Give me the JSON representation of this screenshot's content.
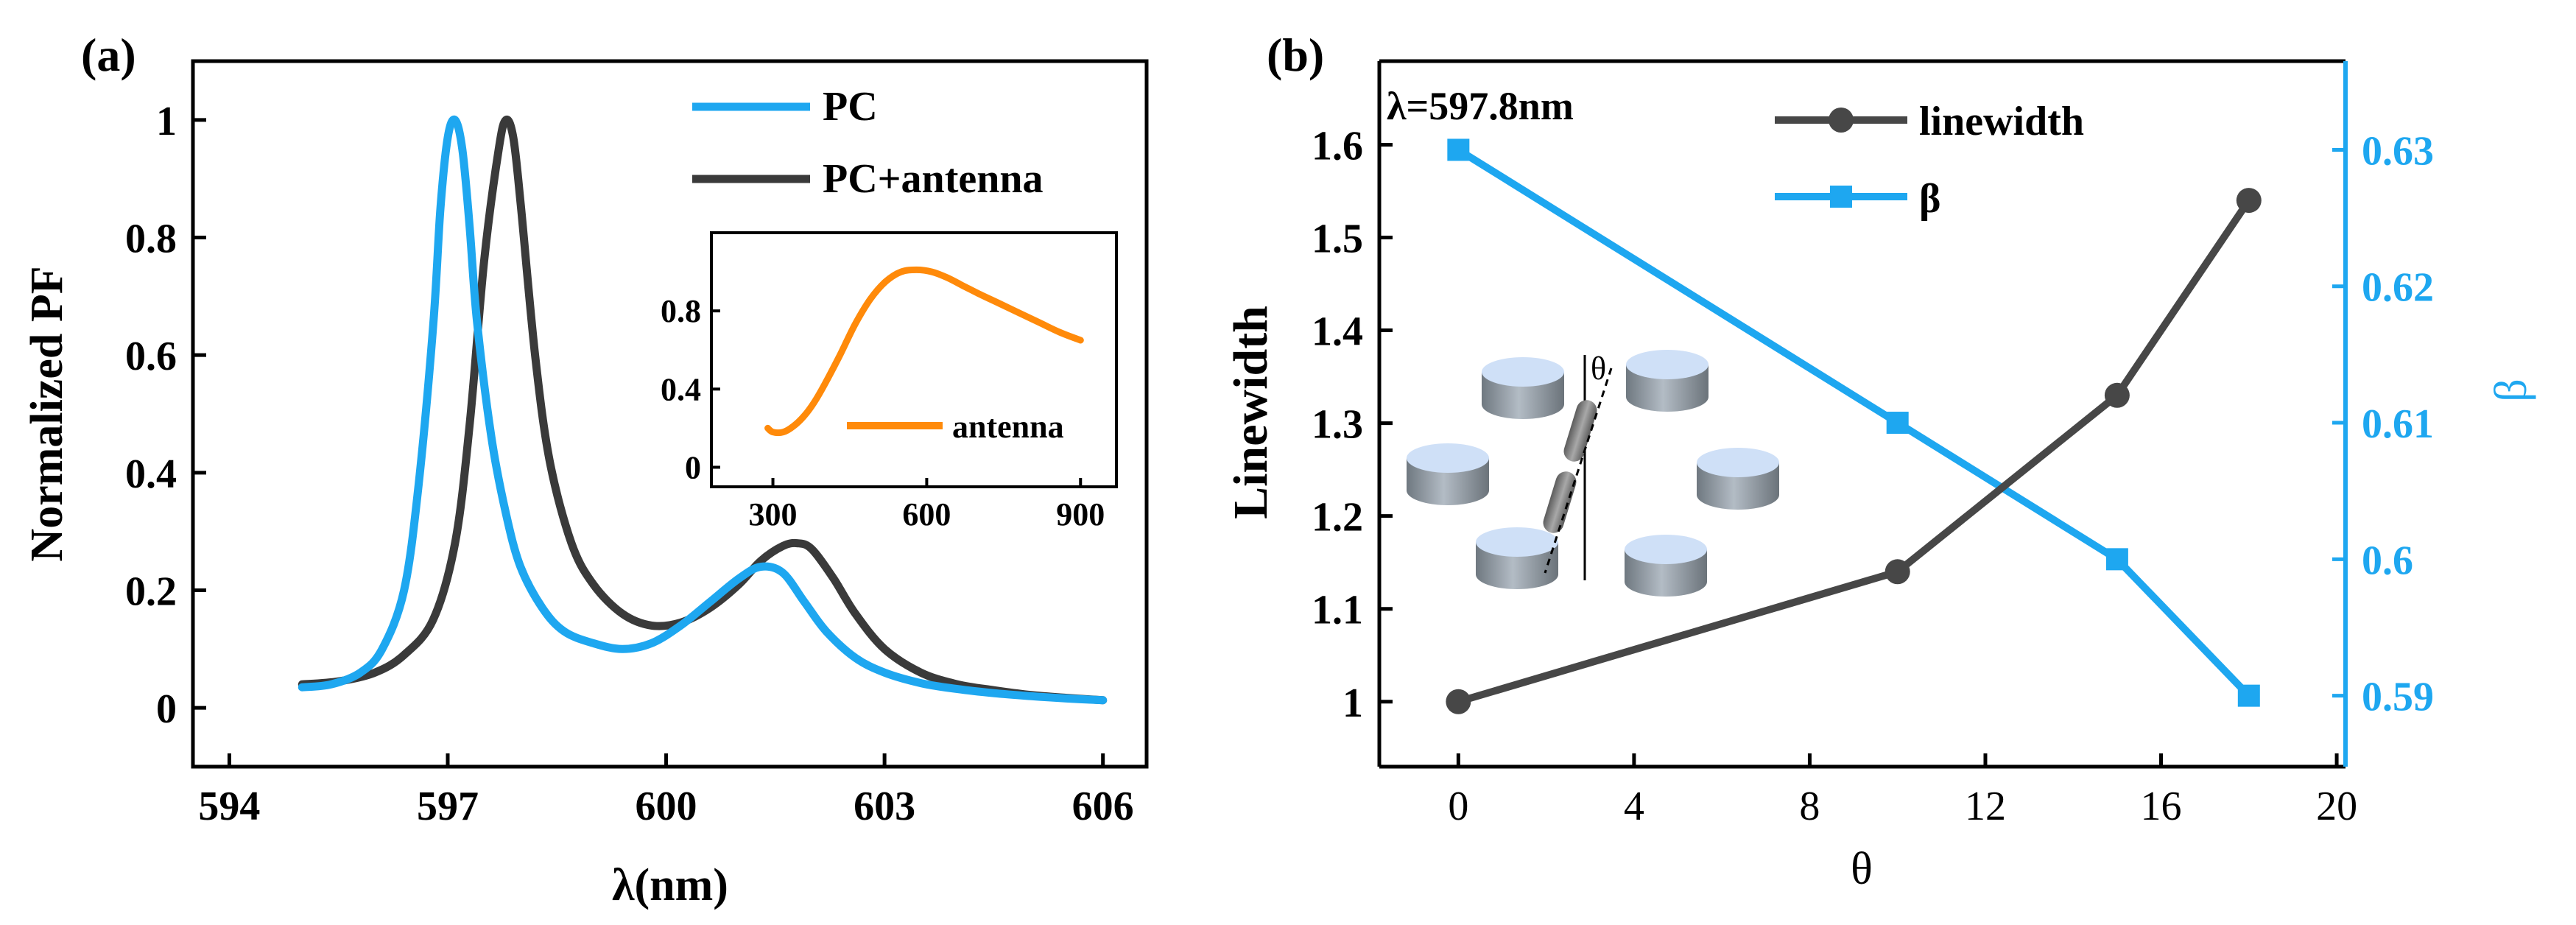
{
  "colors": {
    "pc": "#1ea7f0",
    "pc_antenna": "#3a3a3a",
    "antenna": "#ff8a0a",
    "linewidth": "#474747",
    "beta": "#1ea7f0",
    "disk_top": "#cfe0f7",
    "disk_side": "#8a939c",
    "rod": "#777777"
  },
  "chart_data": [
    {
      "type": "line",
      "panel_label": "(a)",
      "xlabel": "λ(nm)",
      "ylabel": "Normalized PF",
      "xlim": [
        593.5,
        606.6
      ],
      "ylim": [
        -0.1,
        1.1
      ],
      "xticks": [
        594,
        597,
        600,
        603,
        606
      ],
      "yticks": [
        0,
        0.2,
        0.4,
        0.6,
        0.8,
        1
      ],
      "ytick_labels": [
        "0",
        "0.2",
        "0.4",
        "0.6",
        "0.8",
        "1"
      ],
      "legend": {
        "position": "top-right",
        "entries": [
          "PC",
          "PC+antenna"
        ]
      },
      "series": [
        {
          "name": "PC",
          "color": "#1ea7f0",
          "x": [
            595.0,
            595.4,
            595.8,
            596.1,
            596.4,
            596.6,
            596.8,
            596.9,
            597.0,
            597.1,
            597.2,
            597.3,
            597.4,
            597.6,
            597.8,
            598.0,
            598.3,
            598.6,
            599.0,
            599.4,
            599.8,
            600.2,
            600.6,
            601.0,
            601.3,
            601.6,
            601.9,
            602.2,
            602.6,
            603.0,
            603.5,
            604.0,
            604.5,
            605.0,
            605.5,
            606.0
          ],
          "y": [
            0.035,
            0.04,
            0.06,
            0.1,
            0.2,
            0.38,
            0.65,
            0.85,
            0.97,
            1.0,
            0.95,
            0.82,
            0.66,
            0.46,
            0.33,
            0.24,
            0.17,
            0.13,
            0.11,
            0.1,
            0.11,
            0.14,
            0.18,
            0.22,
            0.24,
            0.23,
            0.18,
            0.13,
            0.085,
            0.06,
            0.042,
            0.032,
            0.025,
            0.02,
            0.016,
            0.013
          ]
        },
        {
          "name": "PC+antenna",
          "color": "#3a3a3a",
          "x": [
            595.0,
            595.5,
            596.0,
            596.4,
            596.8,
            597.1,
            597.3,
            597.5,
            597.7,
            597.8,
            597.9,
            598.0,
            598.2,
            598.4,
            598.7,
            599.0,
            599.4,
            599.8,
            600.2,
            600.6,
            601.0,
            601.3,
            601.6,
            601.8,
            602.0,
            602.3,
            602.6,
            603.0,
            603.5,
            604.0,
            604.5,
            605.0,
            605.5,
            606.0
          ],
          "y": [
            0.04,
            0.045,
            0.06,
            0.09,
            0.15,
            0.28,
            0.48,
            0.76,
            0.95,
            1.0,
            0.97,
            0.86,
            0.6,
            0.42,
            0.28,
            0.21,
            0.16,
            0.14,
            0.145,
            0.17,
            0.21,
            0.25,
            0.275,
            0.28,
            0.27,
            0.22,
            0.16,
            0.1,
            0.06,
            0.04,
            0.03,
            0.022,
            0.017,
            0.013
          ]
        }
      ]
    },
    {
      "type": "line",
      "role": "inset",
      "xlim": [
        180,
        970
      ],
      "ylim": [
        -0.1,
        1.2
      ],
      "xticks": [
        300,
        600,
        900
      ],
      "yticks": [
        0,
        0.4,
        0.8
      ],
      "ytick_labels": [
        "0",
        "0.4",
        "0.8"
      ],
      "legend": {
        "position": "bottom-right",
        "entries": [
          "antenna"
        ]
      },
      "series": [
        {
          "name": "antenna",
          "color": "#ff8a0a",
          "x": [
            290,
            300,
            320,
            340,
            360,
            380,
            400,
            430,
            460,
            490,
            520,
            550,
            580,
            610,
            640,
            670,
            700,
            740,
            780,
            820,
            860,
            900
          ],
          "y": [
            0.2,
            0.18,
            0.18,
            0.21,
            0.26,
            0.33,
            0.42,
            0.57,
            0.73,
            0.86,
            0.95,
            1.0,
            1.01,
            1.0,
            0.97,
            0.93,
            0.89,
            0.84,
            0.79,
            0.74,
            0.69,
            0.65
          ]
        }
      ]
    },
    {
      "type": "line",
      "panel_label": "(b)",
      "annotation": "λ=597.8nm",
      "xlabel": "θ",
      "ylabel": "Linewidth",
      "y2label": "β",
      "xlim": [
        -1.8,
        20.2
      ],
      "ylim": [
        0.93,
        1.69
      ],
      "y2lim": [
        0.5848,
        0.6365
      ],
      "xticks": [
        0,
        4,
        8,
        12,
        16,
        20
      ],
      "yticks": [
        1,
        1.1,
        1.2,
        1.3,
        1.4,
        1.5,
        1.6
      ],
      "ytick_labels": [
        "1",
        "1.1",
        "1.2",
        "1.3",
        "1.4",
        "1.5",
        "1.6"
      ],
      "y2ticks": [
        0.59,
        0.6,
        0.61,
        0.62,
        0.63
      ],
      "y2tick_labels": [
        "0.59",
        "0.6",
        "0.61",
        "0.62",
        "0.63"
      ],
      "legend": {
        "position": "top-center",
        "entries": [
          "linewidth",
          "β"
        ]
      },
      "inset_labels": {
        "theta": "θ"
      },
      "series": [
        {
          "name": "linewidth",
          "axis": "left",
          "marker": "circle",
          "color": "#474747",
          "x": [
            0,
            10,
            15,
            18
          ],
          "y": [
            1.0,
            1.14,
            1.33,
            1.54
          ]
        },
        {
          "name": "β",
          "axis": "right",
          "marker": "square",
          "color": "#1ea7f0",
          "x": [
            0,
            10,
            15,
            18
          ],
          "y": [
            0.63,
            0.61,
            0.6,
            0.59
          ]
        }
      ]
    }
  ]
}
